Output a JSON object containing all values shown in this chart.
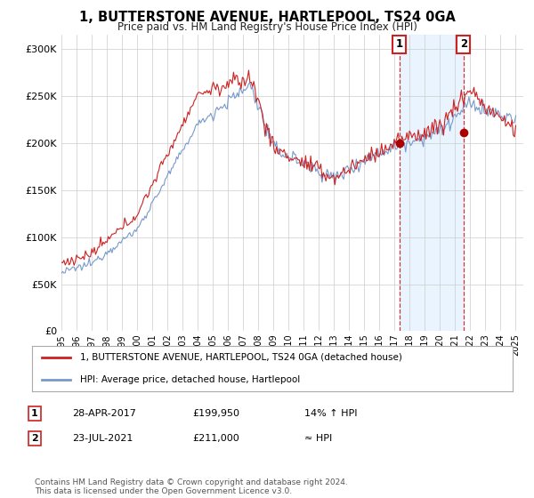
{
  "title": "1, BUTTERSTONE AVENUE, HARTLEPOOL, TS24 0GA",
  "subtitle": "Price paid vs. HM Land Registry's House Price Index (HPI)",
  "ytick_values": [
    0,
    50000,
    100000,
    150000,
    200000,
    250000,
    300000
  ],
  "ylim": [
    0,
    315000
  ],
  "hpi_color": "#7799cc",
  "price_color": "#cc2222",
  "dashed_color": "#cc2222",
  "shade_color": "#ddeeff",
  "marker1_price": 199950,
  "marker2_price": 211000,
  "marker1_year": 2017.32,
  "marker2_year": 2021.55,
  "legend_line1": "1, BUTTERSTONE AVENUE, HARTLEPOOL, TS24 0GA (detached house)",
  "legend_line2": "HPI: Average price, detached house, Hartlepool",
  "table_row1": [
    "1",
    "28-APR-2017",
    "£199,950",
    "14% ↑ HPI"
  ],
  "table_row2": [
    "2",
    "23-JUL-2021",
    "£211,000",
    "≈ HPI"
  ],
  "footer": "Contains HM Land Registry data © Crown copyright and database right 2024.\nThis data is licensed under the Open Government Licence v3.0.",
  "background_color": "#ffffff"
}
